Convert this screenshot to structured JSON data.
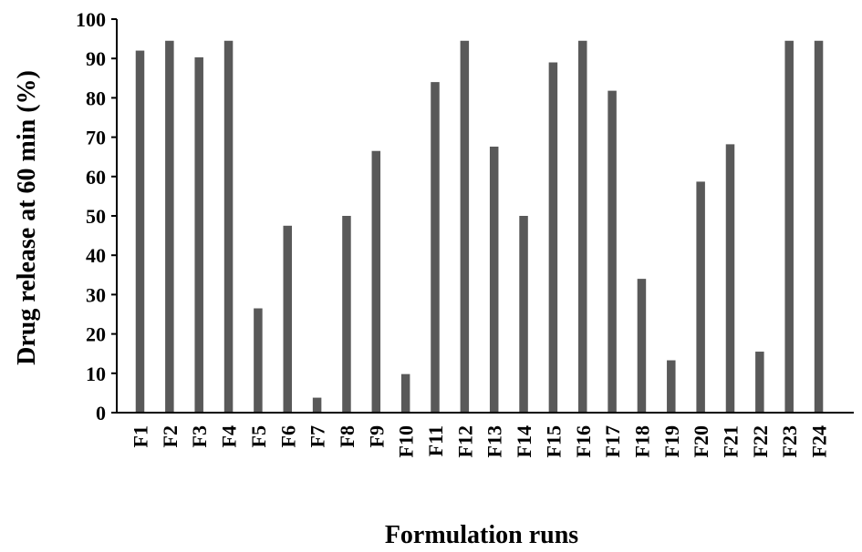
{
  "chart_data": {
    "type": "bar",
    "title": "",
    "xlabel": "Formulation runs",
    "ylabel": "Drug release at 60 min (%)",
    "ylim": [
      0,
      100
    ],
    "yticks": [
      0,
      10,
      20,
      30,
      40,
      50,
      60,
      70,
      80,
      90,
      100
    ],
    "grid": false,
    "legend": "none",
    "bar_color": "#595959",
    "categories": [
      "F1",
      "F2",
      "F3",
      "F4",
      "F5",
      "F6",
      "F7",
      "F8",
      "F9",
      "F10",
      "F11",
      "F12",
      "F13",
      "F14",
      "F15",
      "F16",
      "F17",
      "F18",
      "F19",
      "F20",
      "F21",
      "F22",
      "F23",
      "F24"
    ],
    "values": [
      92,
      94.5,
      90.3,
      94.5,
      26.5,
      47.5,
      3.8,
      50,
      66.5,
      9.8,
      84,
      94.5,
      67.6,
      50,
      89,
      94.5,
      81.8,
      34,
      13.3,
      58.7,
      68.2,
      15.5,
      94.5,
      94.5
    ]
  }
}
